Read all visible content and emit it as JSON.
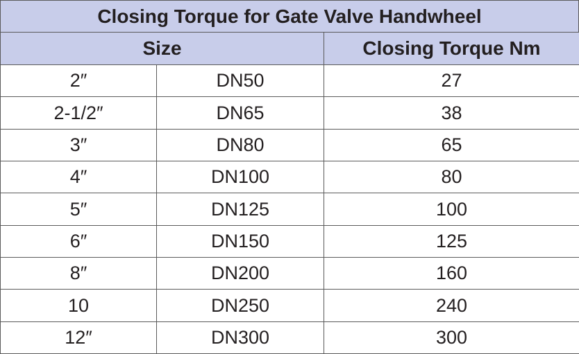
{
  "header": {
    "title": "Closing Torque for Gate Valve Handwheel"
  },
  "table": {
    "columns": [
      "Size",
      "Closing Torque Nm"
    ],
    "rows": [
      [
        "2″",
        "DN50",
        27
      ],
      [
        "2-1/2″",
        "DN65",
        38
      ],
      [
        "3″",
        "DN80",
        65
      ],
      [
        "4″",
        "DN100",
        80
      ],
      [
        "5″",
        "DN125",
        100
      ],
      [
        "6″",
        "DN150",
        125
      ],
      [
        "8″",
        "DN200",
        160
      ],
      [
        "10",
        "DN250",
        240
      ],
      [
        "12″",
        "DN300",
        300
      ]
    ]
  }
}
